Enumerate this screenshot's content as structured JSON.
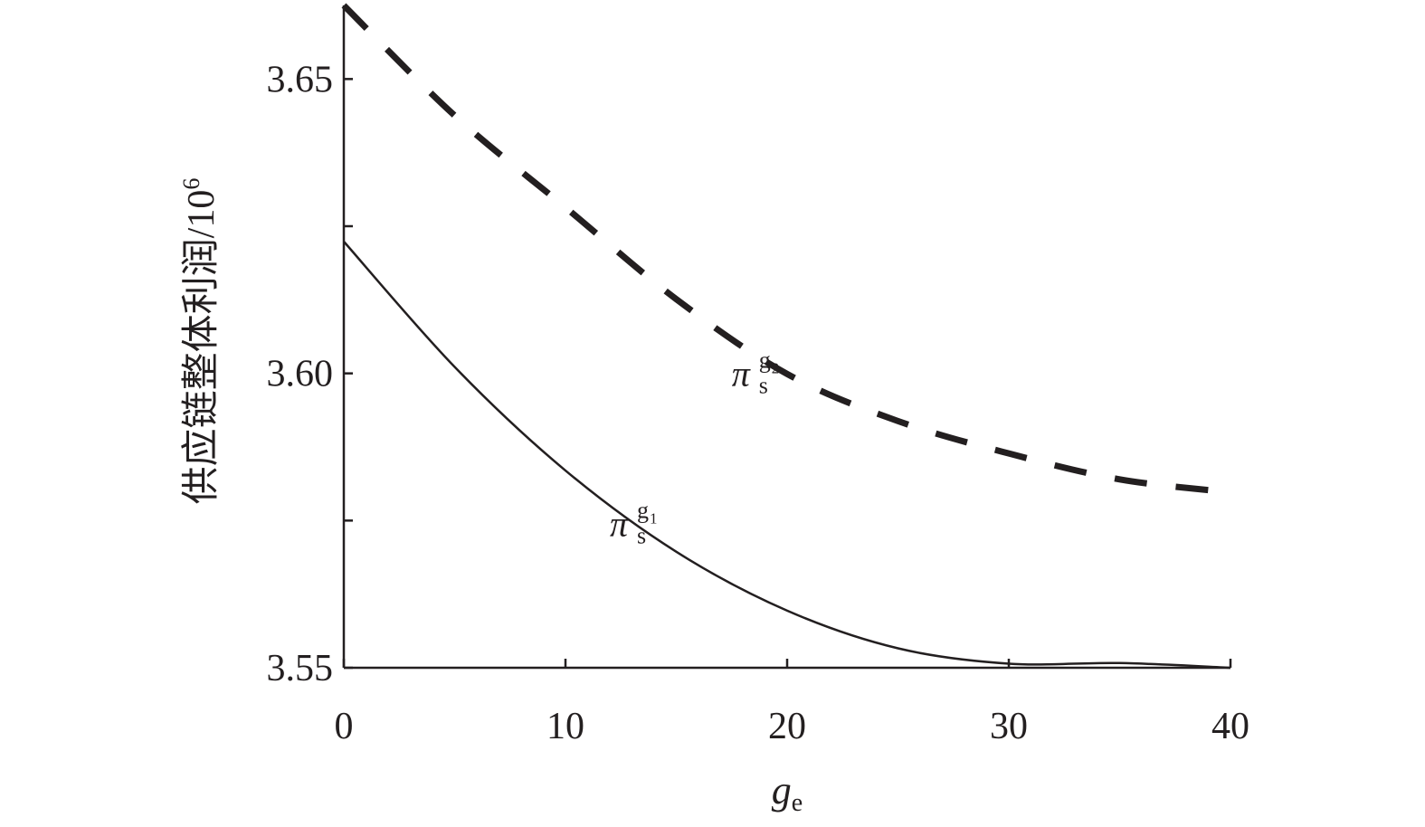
{
  "chart_data": {
    "type": "line",
    "title": "",
    "xlabel": {
      "main": "g",
      "sub": "e"
    },
    "ylabel": {
      "text": "供应链整体利润/10",
      "sup": "6"
    },
    "xlim": [
      0,
      40
    ],
    "ylim": [
      3.55,
      3.6625
    ],
    "x_ticks": [
      0,
      10,
      20,
      30,
      40
    ],
    "x_tick_labels": [
      "0",
      "10",
      "20",
      "30",
      "40"
    ],
    "y_ticks": [
      3.55,
      3.575,
      3.6,
      3.625,
      3.65
    ],
    "y_tick_labels": [
      "3.55",
      "",
      "3.60",
      "",
      "3.65"
    ],
    "grid": false,
    "legend": "none",
    "series": [
      {
        "label": {
          "main": "π",
          "sub": "s",
          "sup": "g",
          "sup_sub": "1"
        },
        "label_at": [
          12,
          3.5724
        ],
        "style": "solid",
        "color": "#231f20",
        "x": [
          0,
          5,
          10,
          15,
          20,
          25,
          30,
          35,
          40
        ],
        "y": [
          3.6224,
          3.6011,
          3.5835,
          3.5697,
          3.5597,
          3.5533,
          3.5507,
          3.5508,
          3.55
        ]
      },
      {
        "label": {
          "main": "π",
          "sub": "s",
          "sup": "g",
          "sup_sub": "2"
        },
        "label_at": [
          17.5,
          3.5979
        ],
        "style": "dashed",
        "color": "#231f20",
        "x": [
          0,
          5,
          10,
          15,
          20,
          25,
          30,
          35,
          40
        ],
        "y": [
          3.6625,
          3.6438,
          3.6282,
          3.6126,
          3.5999,
          3.5919,
          3.5864,
          3.582,
          3.5798
        ]
      }
    ]
  }
}
